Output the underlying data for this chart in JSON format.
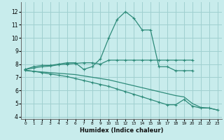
{
  "xlabel": "Humidex (Indice chaleur)",
  "color": "#2e8b7a",
  "bg_color": "#c8ecec",
  "grid_color": "#a0d0d0",
  "ylim": [
    3.8,
    12.7
  ],
  "yticks": [
    4,
    5,
    6,
    7,
    8,
    9,
    10,
    11,
    12
  ],
  "line1_x": [
    0,
    1,
    2,
    3,
    4,
    5,
    6,
    7,
    8,
    9,
    10,
    11,
    12,
    13,
    14,
    15,
    16,
    17,
    18,
    19,
    20
  ],
  "line1_y": [
    7.6,
    7.8,
    7.9,
    7.9,
    8.0,
    8.1,
    8.1,
    7.6,
    7.8,
    8.4,
    10.0,
    11.4,
    12.0,
    11.5,
    10.6,
    10.6,
    7.8,
    7.8,
    7.5,
    7.5,
    7.5
  ],
  "line2_x": [
    0,
    1,
    2,
    3,
    4,
    5,
    6,
    7,
    8,
    9,
    10,
    11,
    12,
    13,
    14,
    15,
    16,
    17,
    18,
    19,
    20
  ],
  "line2_y": [
    7.6,
    7.7,
    7.8,
    7.85,
    7.95,
    8.0,
    8.05,
    8.1,
    8.1,
    8.0,
    8.3,
    8.3,
    8.3,
    8.3,
    8.3,
    8.3,
    8.3,
    8.3,
    8.3,
    8.3,
    8.3
  ],
  "line3_x": [
    0,
    1,
    2,
    3,
    4,
    5,
    6,
    7,
    8,
    9,
    10,
    11,
    12,
    13,
    14,
    15,
    16,
    17,
    18,
    19,
    20,
    21,
    22,
    23
  ],
  "line3_y": [
    7.55,
    7.45,
    7.35,
    7.25,
    7.15,
    7.05,
    6.9,
    6.75,
    6.6,
    6.45,
    6.3,
    6.1,
    5.9,
    5.7,
    5.5,
    5.3,
    5.1,
    4.9,
    4.9,
    5.3,
    4.8,
    4.65,
    4.65,
    4.5
  ],
  "line4_x": [
    0,
    1,
    2,
    3,
    4,
    5,
    6,
    7,
    8,
    9,
    10,
    11,
    12,
    13,
    14,
    15,
    16,
    17,
    18,
    19,
    20,
    21,
    22,
    23
  ],
  "line4_y": [
    7.5,
    7.45,
    7.4,
    7.35,
    7.3,
    7.25,
    7.2,
    7.1,
    7.0,
    6.9,
    6.8,
    6.65,
    6.5,
    6.35,
    6.2,
    6.05,
    5.9,
    5.75,
    5.6,
    5.5,
    5.0,
    4.7,
    4.65,
    4.5
  ]
}
